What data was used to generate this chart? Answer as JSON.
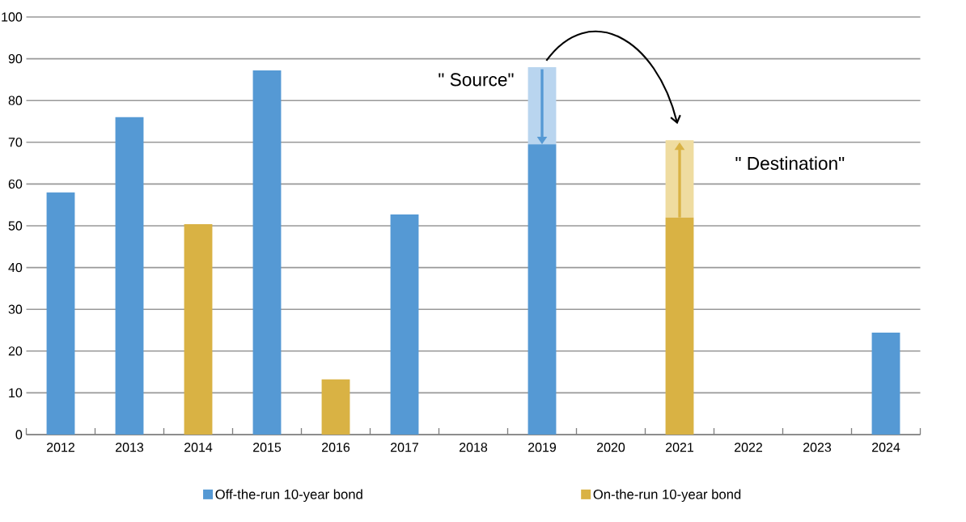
{
  "chart_data": {
    "type": "bar",
    "stacked": true,
    "categories": [
      "2012",
      "2013",
      "2014",
      "2015",
      "2016",
      "2017",
      "2018",
      "2019",
      "2020",
      "2021",
      "2022",
      "2023",
      "2024"
    ],
    "series": [
      {
        "name": "Off-the-run 10-year bond",
        "color": "#5599d4",
        "values": [
          58,
          76,
          null,
          87.2,
          null,
          52.7,
          null,
          69.5,
          null,
          null,
          null,
          null,
          24.4
        ]
      },
      {
        "name": "On-the-run 10-year bond",
        "color": "#d9b244",
        "values": [
          null,
          null,
          50.4,
          null,
          13.2,
          null,
          null,
          null,
          null,
          52,
          null,
          null,
          null
        ]
      },
      {
        "color": "#b9d5ef",
        "values": [
          null,
          null,
          null,
          null,
          null,
          null,
          null,
          18.5,
          null,
          null,
          null,
          null,
          null
        ]
      },
      {
        "color": "#efdca0",
        "values": [
          null,
          null,
          null,
          null,
          null,
          null,
          null,
          null,
          null,
          18.5,
          null,
          null,
          null
        ]
      }
    ],
    "ylim": [
      0,
      100
    ],
    "yticks": [
      0,
      10,
      20,
      30,
      40,
      50,
      60,
      70,
      80,
      90,
      100
    ],
    "grid": "y",
    "legend": "bottom",
    "annotations": [
      "\" Source\"",
      "\" Destination\""
    ]
  }
}
